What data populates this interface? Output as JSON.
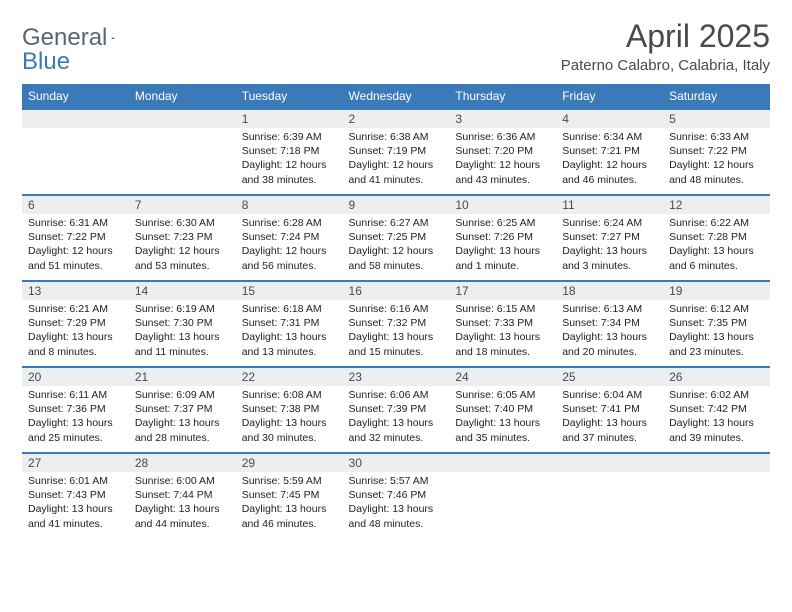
{
  "logo": {
    "text1": "General",
    "text2": "Blue"
  },
  "title": "April 2025",
  "location": "Paterno Calabro, Calabria, Italy",
  "colors": {
    "header_bg": "#3a7ab8",
    "header_text": "#ffffff",
    "daynum_bg": "#eceeef",
    "border": "#3a7ab8",
    "body_text": "#222222"
  },
  "day_headers": [
    "Sunday",
    "Monday",
    "Tuesday",
    "Wednesday",
    "Thursday",
    "Friday",
    "Saturday"
  ],
  "weeks": [
    [
      null,
      null,
      {
        "n": "1",
        "sr": "6:39 AM",
        "ss": "7:18 PM",
        "dl": "12 hours and 38 minutes."
      },
      {
        "n": "2",
        "sr": "6:38 AM",
        "ss": "7:19 PM",
        "dl": "12 hours and 41 minutes."
      },
      {
        "n": "3",
        "sr": "6:36 AM",
        "ss": "7:20 PM",
        "dl": "12 hours and 43 minutes."
      },
      {
        "n": "4",
        "sr": "6:34 AM",
        "ss": "7:21 PM",
        "dl": "12 hours and 46 minutes."
      },
      {
        "n": "5",
        "sr": "6:33 AM",
        "ss": "7:22 PM",
        "dl": "12 hours and 48 minutes."
      }
    ],
    [
      {
        "n": "6",
        "sr": "6:31 AM",
        "ss": "7:22 PM",
        "dl": "12 hours and 51 minutes."
      },
      {
        "n": "7",
        "sr": "6:30 AM",
        "ss": "7:23 PM",
        "dl": "12 hours and 53 minutes."
      },
      {
        "n": "8",
        "sr": "6:28 AM",
        "ss": "7:24 PM",
        "dl": "12 hours and 56 minutes."
      },
      {
        "n": "9",
        "sr": "6:27 AM",
        "ss": "7:25 PM",
        "dl": "12 hours and 58 minutes."
      },
      {
        "n": "10",
        "sr": "6:25 AM",
        "ss": "7:26 PM",
        "dl": "13 hours and 1 minute."
      },
      {
        "n": "11",
        "sr": "6:24 AM",
        "ss": "7:27 PM",
        "dl": "13 hours and 3 minutes."
      },
      {
        "n": "12",
        "sr": "6:22 AM",
        "ss": "7:28 PM",
        "dl": "13 hours and 6 minutes."
      }
    ],
    [
      {
        "n": "13",
        "sr": "6:21 AM",
        "ss": "7:29 PM",
        "dl": "13 hours and 8 minutes."
      },
      {
        "n": "14",
        "sr": "6:19 AM",
        "ss": "7:30 PM",
        "dl": "13 hours and 11 minutes."
      },
      {
        "n": "15",
        "sr": "6:18 AM",
        "ss": "7:31 PM",
        "dl": "13 hours and 13 minutes."
      },
      {
        "n": "16",
        "sr": "6:16 AM",
        "ss": "7:32 PM",
        "dl": "13 hours and 15 minutes."
      },
      {
        "n": "17",
        "sr": "6:15 AM",
        "ss": "7:33 PM",
        "dl": "13 hours and 18 minutes."
      },
      {
        "n": "18",
        "sr": "6:13 AM",
        "ss": "7:34 PM",
        "dl": "13 hours and 20 minutes."
      },
      {
        "n": "19",
        "sr": "6:12 AM",
        "ss": "7:35 PM",
        "dl": "13 hours and 23 minutes."
      }
    ],
    [
      {
        "n": "20",
        "sr": "6:11 AM",
        "ss": "7:36 PM",
        "dl": "13 hours and 25 minutes."
      },
      {
        "n": "21",
        "sr": "6:09 AM",
        "ss": "7:37 PM",
        "dl": "13 hours and 28 minutes."
      },
      {
        "n": "22",
        "sr": "6:08 AM",
        "ss": "7:38 PM",
        "dl": "13 hours and 30 minutes."
      },
      {
        "n": "23",
        "sr": "6:06 AM",
        "ss": "7:39 PM",
        "dl": "13 hours and 32 minutes."
      },
      {
        "n": "24",
        "sr": "6:05 AM",
        "ss": "7:40 PM",
        "dl": "13 hours and 35 minutes."
      },
      {
        "n": "25",
        "sr": "6:04 AM",
        "ss": "7:41 PM",
        "dl": "13 hours and 37 minutes."
      },
      {
        "n": "26",
        "sr": "6:02 AM",
        "ss": "7:42 PM",
        "dl": "13 hours and 39 minutes."
      }
    ],
    [
      {
        "n": "27",
        "sr": "6:01 AM",
        "ss": "7:43 PM",
        "dl": "13 hours and 41 minutes."
      },
      {
        "n": "28",
        "sr": "6:00 AM",
        "ss": "7:44 PM",
        "dl": "13 hours and 44 minutes."
      },
      {
        "n": "29",
        "sr": "5:59 AM",
        "ss": "7:45 PM",
        "dl": "13 hours and 46 minutes."
      },
      {
        "n": "30",
        "sr": "5:57 AM",
        "ss": "7:46 PM",
        "dl": "13 hours and 48 minutes."
      },
      null,
      null,
      null
    ]
  ],
  "labels": {
    "sunrise": "Sunrise:",
    "sunset": "Sunset:",
    "daylight": "Daylight:"
  }
}
